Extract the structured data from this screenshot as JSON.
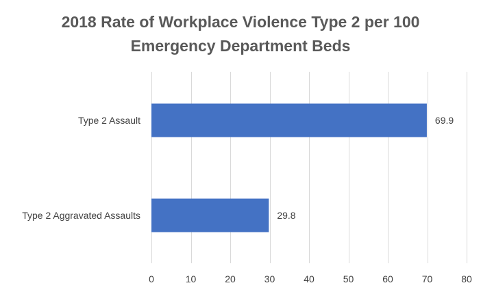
{
  "chart_data": {
    "type": "bar",
    "orientation": "horizontal",
    "title": "2018 Rate of Workplace Violence Type 2 per 100 Emergency Department Beds",
    "title_lines": [
      "2018 Rate of Workplace Violence Type 2 per 100",
      "Emergency Department Beds"
    ],
    "categories": [
      "Type 2 Assault",
      "Type 2 Aggravated Assaults"
    ],
    "values": [
      69.9,
      29.8
    ],
    "data_labels": [
      "69.9",
      "29.8"
    ],
    "xlabel": "",
    "ylabel": "",
    "xlim": [
      0,
      80
    ],
    "x_ticks": [
      0,
      10,
      20,
      30,
      40,
      50,
      60,
      70,
      80
    ],
    "grid": true,
    "legend": "none",
    "colors": {
      "bar": "#4472c4",
      "grid": "#d9d9d9",
      "title": "#595959",
      "text": "#404040"
    }
  }
}
